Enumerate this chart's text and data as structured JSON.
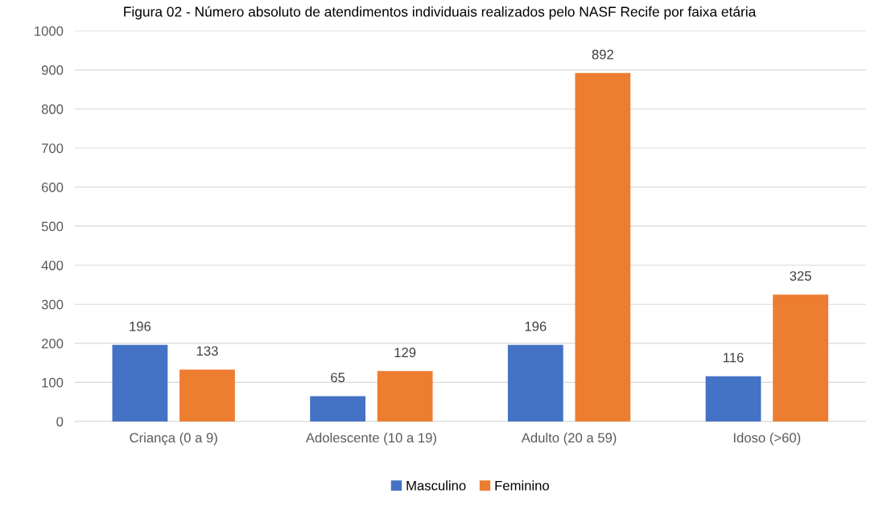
{
  "chart_data": {
    "type": "bar",
    "title": "Figura 02 - Número absoluto de atendimentos individuais realizados pelo NASF Recife por faixa etária",
    "categories": [
      "Criança (0 a 9)",
      "Adolescente (10 a 19)",
      "Adulto (20 a 59)",
      "Idoso (>60)"
    ],
    "series": [
      {
        "name": "Masculino",
        "color": "#4472c4",
        "values": [
          196,
          65,
          196,
          116
        ]
      },
      {
        "name": "Feminino",
        "color": "#ed7d31",
        "values": [
          133,
          129,
          892,
          325
        ]
      }
    ],
    "ylim": [
      0,
      1000
    ],
    "yticks": [
      0,
      100,
      200,
      300,
      400,
      500,
      600,
      700,
      800,
      900,
      1000
    ],
    "grid": "y",
    "legend": "bottom",
    "data_labels": true
  }
}
